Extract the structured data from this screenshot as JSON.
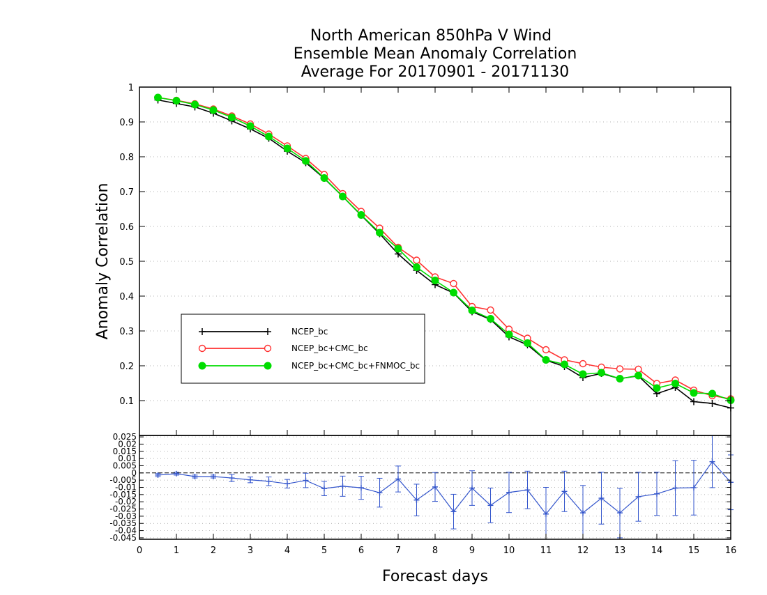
{
  "chart_data": [
    {
      "type": "line",
      "title": [
        "North American 850hPa V Wind",
        "Ensemble Mean Anomaly Correlation",
        "Average For 20170901 - 20171130"
      ],
      "xlabel": "Forecast days",
      "ylabel": "Anomaly Correlation",
      "xlim": [
        0,
        16
      ],
      "ylim": [
        0,
        1
      ],
      "x_ticks": [
        "0",
        "1",
        "2",
        "3",
        "4",
        "5",
        "6",
        "7",
        "8",
        "9",
        "10",
        "11",
        "12",
        "13",
        "14",
        "15",
        "16"
      ],
      "y_ticks": [
        "0.1",
        "0.2",
        "0.3",
        "0.4",
        "0.5",
        "0.6",
        "0.7",
        "0.8",
        "0.9",
        "1"
      ],
      "grid": true,
      "legend_position": "middle-left",
      "x": [
        0.5,
        1,
        1.5,
        2,
        2.5,
        3,
        3.5,
        4,
        4.5,
        5,
        5.5,
        6,
        6.5,
        7,
        7.5,
        8,
        8.5,
        9,
        9.5,
        10,
        10.5,
        11,
        11.5,
        12,
        12.5,
        13,
        13.5,
        14,
        14.5,
        15,
        15.5,
        16
      ],
      "series": [
        {
          "name": "NCEP_bc",
          "color": "#000000",
          "marker": "plus",
          "values": [
            0.963,
            0.953,
            0.943,
            0.925,
            0.903,
            0.88,
            0.853,
            0.816,
            0.783,
            0.738,
            0.686,
            0.632,
            0.579,
            0.521,
            0.474,
            0.433,
            0.409,
            0.355,
            0.333,
            0.283,
            0.26,
            0.216,
            0.198,
            0.166,
            0.178,
            0.163,
            0.171,
            0.12,
            0.138,
            0.097,
            0.092,
            0.079
          ]
        },
        {
          "name": "NCEP_bc+CMC_bc",
          "color": "#ff3030",
          "marker": "open-circle",
          "values": [
            0.97,
            0.962,
            0.952,
            0.937,
            0.917,
            0.894,
            0.865,
            0.831,
            0.795,
            0.749,
            0.694,
            0.643,
            0.595,
            0.54,
            0.503,
            0.455,
            0.436,
            0.37,
            0.36,
            0.305,
            0.279,
            0.246,
            0.217,
            0.206,
            0.196,
            0.191,
            0.19,
            0.149,
            0.159,
            0.13,
            0.114,
            0.105
          ]
        },
        {
          "name": "NCEP_bc+CMC_bc+FNMOC_bc",
          "color": "#00dd00",
          "marker": "filled-circle",
          "values": [
            0.97,
            0.961,
            0.95,
            0.934,
            0.913,
            0.888,
            0.858,
            0.824,
            0.788,
            0.739,
            0.686,
            0.633,
            0.582,
            0.536,
            0.483,
            0.445,
            0.41,
            0.359,
            0.335,
            0.29,
            0.265,
            0.217,
            0.204,
            0.176,
            0.18,
            0.163,
            0.172,
            0.136,
            0.149,
            0.122,
            0.12,
            0.101
          ]
        }
      ]
    },
    {
      "type": "line",
      "xlim": [
        0,
        16
      ],
      "ylim": [
        -0.046,
        0.026
      ],
      "y_ticks": [
        "0.025",
        "0.02",
        "0.015",
        "0.01",
        "0.005",
        "0",
        "-0.005",
        "-0.01",
        "-0.015",
        "-0.02",
        "-0.025",
        "-0.03",
        "-0.035",
        "-0.04",
        "-0.045"
      ],
      "grid": true,
      "zero_line": true,
      "x": [
        0.5,
        1,
        1.5,
        2,
        2.5,
        3,
        3.5,
        4,
        4.5,
        5,
        5.5,
        6,
        6.5,
        7,
        7.5,
        8,
        8.5,
        9,
        9.5,
        10,
        10.5,
        11,
        11.5,
        12,
        12.5,
        13,
        13.5,
        14,
        14.5,
        15,
        15.5,
        16
      ],
      "series": [
        {
          "color": "#3355cc",
          "marker": "plus",
          "values": [
            -0.0015,
            -0.0005,
            -0.0025,
            -0.0025,
            -0.0035,
            -0.0048,
            -0.0058,
            -0.0075,
            -0.0052,
            -0.0108,
            -0.0092,
            -0.0103,
            -0.0137,
            -0.0042,
            -0.0188,
            -0.0097,
            -0.0268,
            -0.0105,
            -0.0225,
            -0.0135,
            -0.0118,
            -0.0285,
            -0.0128,
            -0.0277,
            -0.0175,
            -0.0277,
            -0.0165,
            -0.0145,
            -0.0105,
            -0.0102,
            0.0078,
            -0.0065
          ],
          "error_low": [
            -0.0025,
            -0.0015,
            -0.0035,
            -0.0035,
            -0.006,
            -0.0068,
            -0.0088,
            -0.0105,
            -0.0102,
            -0.0158,
            -0.0162,
            -0.0183,
            -0.0237,
            -0.0132,
            -0.0298,
            -0.0197,
            -0.0388,
            -0.0225,
            -0.0345,
            -0.0275,
            -0.0248,
            -0.047,
            -0.0268,
            -0.047,
            -0.0355,
            -0.045,
            -0.0335,
            -0.0295,
            -0.0295,
            -0.0292,
            -0.0102,
            -0.0255
          ],
          "error_high": [
            -0.0005,
            0.0005,
            -0.0015,
            -0.0015,
            -0.001,
            -0.0028,
            -0.0028,
            -0.0045,
            -0.0002,
            -0.0058,
            -0.0022,
            -0.0023,
            -0.0037,
            0.0048,
            -0.0078,
            0.0003,
            -0.0148,
            0.0015,
            -0.0105,
            0.0005,
            0.0012,
            -0.01,
            0.0012,
            -0.0087,
            0.0005,
            -0.0107,
            0.0005,
            0.0005,
            0.0085,
            0.0088,
            0.026,
            0.0125
          ]
        }
      ]
    }
  ]
}
